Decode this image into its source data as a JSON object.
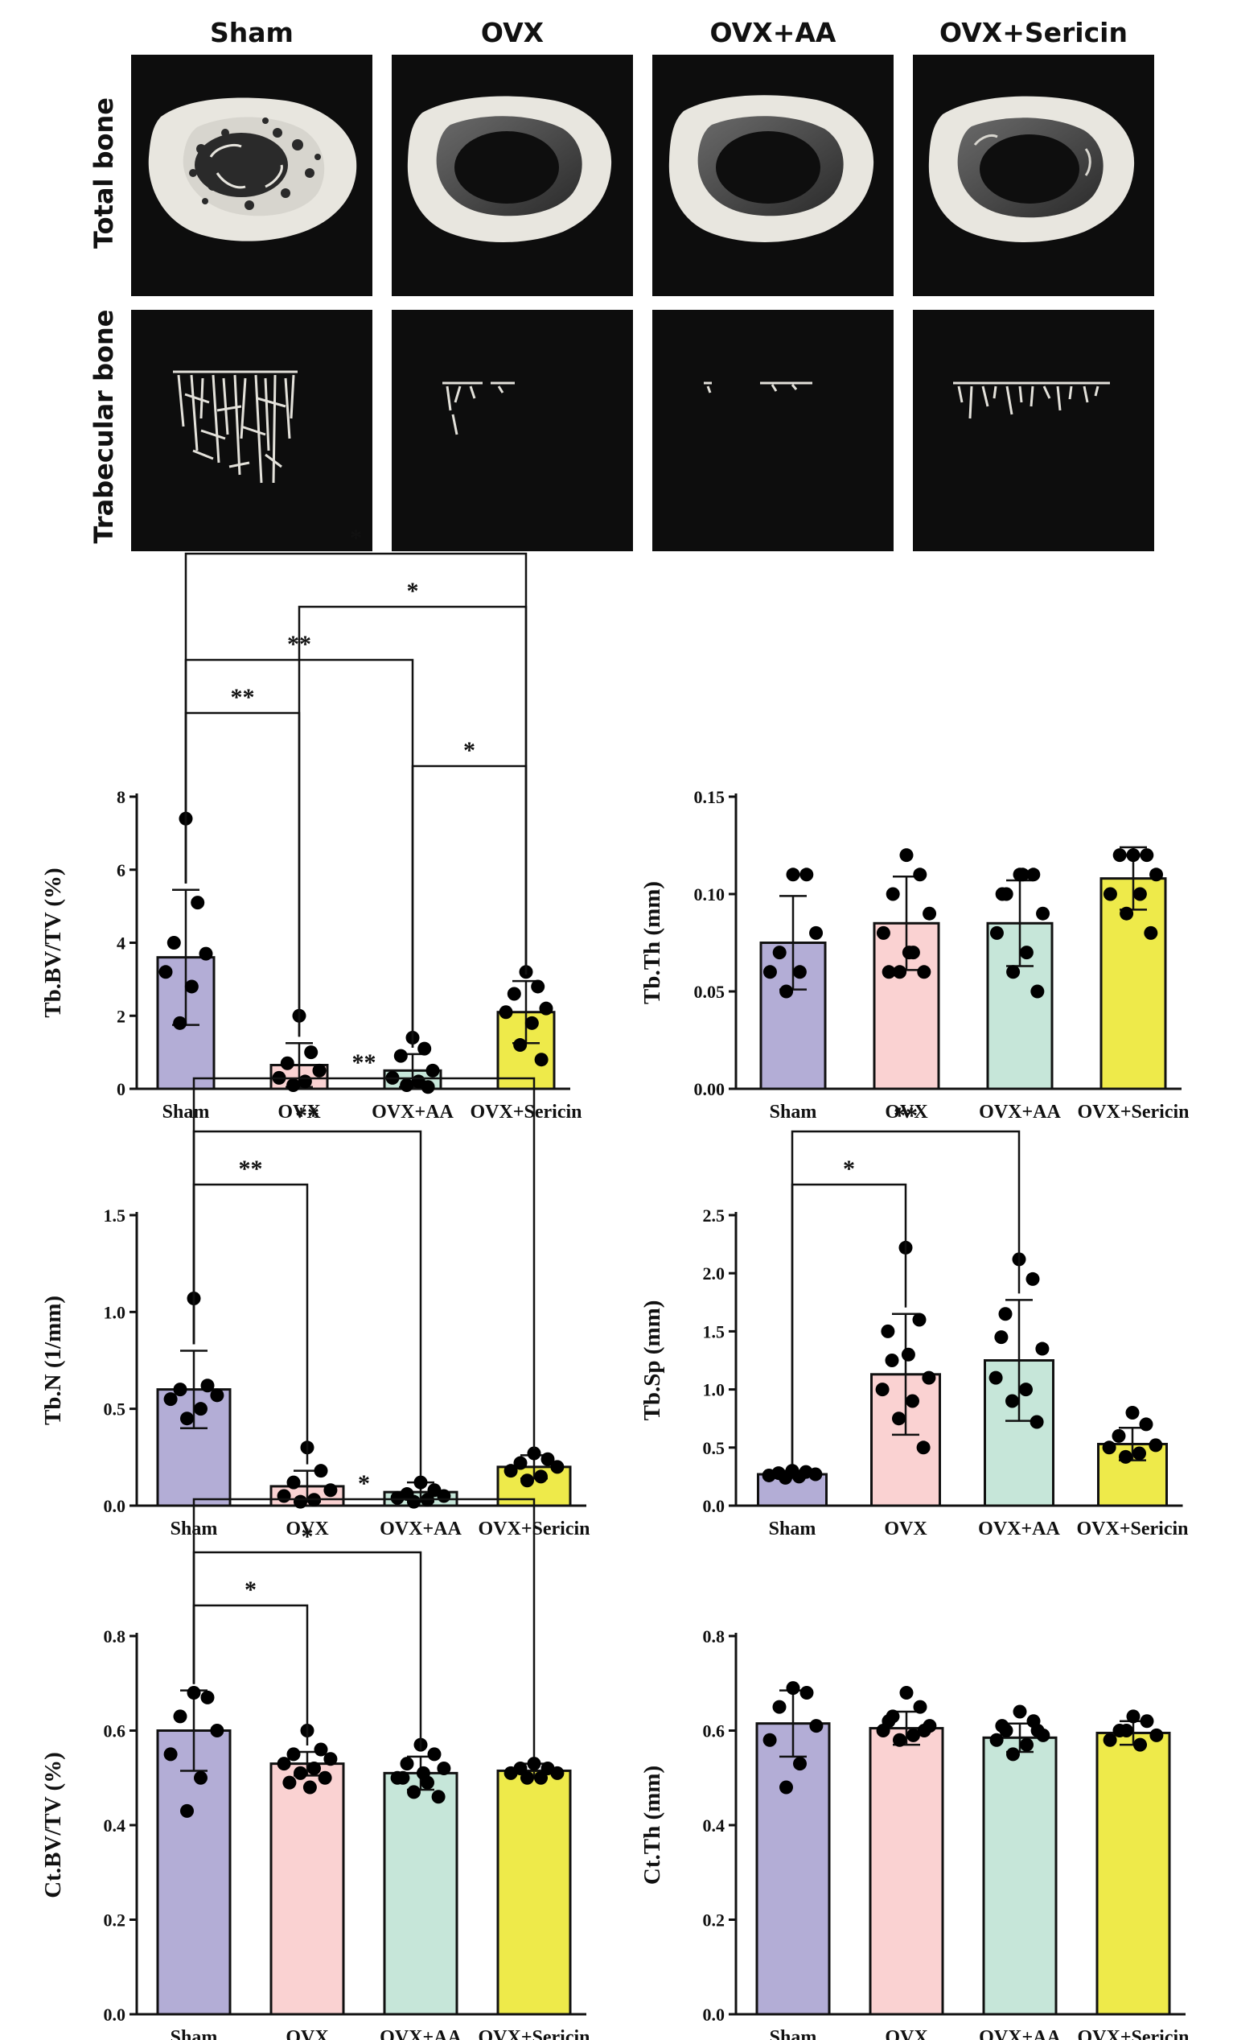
{
  "figure": {
    "groups": [
      "Sham",
      "OVX",
      "OVX+AA",
      "OVX+Sericin"
    ],
    "row_labels": [
      "Total bone",
      "Trabecular bone"
    ],
    "panel_image_labels": {
      "total": [
        "Sham total bone micro-CT",
        "OVX total bone micro-CT",
        "OVX+AA total bone micro-CT",
        "OVX+Sericin total bone micro-CT"
      ],
      "trabecular": [
        "Sham trabecular bone micro-CT",
        "OVX trabecular bone micro-CT",
        "OVX+AA trabecular bone micro-CT",
        "OVX+Sericin trabecular bone micro-CT"
      ]
    },
    "colors": {
      "Sham": "#b3add6",
      "OVX": "#fad2d2",
      "OVX+AA": "#c6e6d9",
      "OVX+Sericin": "#eeea4a"
    }
  },
  "chart_data": [
    {
      "type": "bar",
      "id": "tbbvtv",
      "ylabel": "Tb.BV/TV (%)",
      "categories": [
        "Sham",
        "OVX",
        "OVX+AA",
        "OVX+Sericin"
      ],
      "values": [
        3.6,
        0.65,
        0.5,
        2.1
      ],
      "sd": [
        1.85,
        0.6,
        0.45,
        0.85
      ],
      "ylim": [
        0,
        8
      ],
      "yticks": [
        0,
        2,
        4,
        6,
        8
      ],
      "tick_labels": [
        "0",
        "2",
        "4",
        "6",
        "8"
      ],
      "points": [
        [
          7.4,
          5.1,
          4.0,
          3.7,
          3.2,
          2.8,
          1.8
        ],
        [
          2.0,
          1.0,
          0.7,
          0.5,
          0.3,
          0.2,
          0.1
        ],
        [
          1.4,
          1.1,
          0.9,
          0.5,
          0.3,
          0.2,
          0.1,
          0.05
        ],
        [
          3.2,
          2.8,
          2.6,
          2.2,
          2.1,
          1.8,
          1.2,
          0.8
        ]
      ],
      "significance": [
        {
          "from": 0,
          "to": 3,
          "label": "*"
        },
        {
          "from": 1,
          "to": 3,
          "label": "*"
        },
        {
          "from": 0,
          "to": 2,
          "label": "**"
        },
        {
          "from": 0,
          "to": 1,
          "label": "**"
        },
        {
          "from": 2,
          "to": 3,
          "label": "*"
        }
      ]
    },
    {
      "type": "bar",
      "id": "tbth",
      "ylabel": "Tb.Th (mm)",
      "categories": [
        "Sham",
        "OVX",
        "OVX+AA",
        "OVX+Sericin"
      ],
      "values": [
        0.075,
        0.085,
        0.085,
        0.108
      ],
      "sd": [
        0.024,
        0.024,
        0.022,
        0.016
      ],
      "ylim": [
        0,
        0.15
      ],
      "yticks": [
        0,
        0.05,
        0.1,
        0.15
      ],
      "tick_labels": [
        "0.00",
        "0.05",
        "0.10",
        "0.15"
      ],
      "points": [
        [
          0.11,
          0.11,
          0.07,
          0.08,
          0.06,
          0.06,
          0.05
        ],
        [
          0.12,
          0.11,
          0.1,
          0.09,
          0.08,
          0.07,
          0.06,
          0.06,
          0.06,
          0.07
        ],
        [
          0.11,
          0.11,
          0.1,
          0.09,
          0.08,
          0.07,
          0.06,
          0.05,
          0.1,
          0.11
        ],
        [
          0.12,
          0.12,
          0.12,
          0.11,
          0.1,
          0.1,
          0.09,
          0.08
        ]
      ],
      "significance": []
    },
    {
      "type": "bar",
      "id": "tbn",
      "ylabel": "Tb.N (1/mm)",
      "categories": [
        "Sham",
        "OVX",
        "OVX+AA",
        "OVX+Sericin"
      ],
      "values": [
        0.6,
        0.1,
        0.07,
        0.2
      ],
      "sd": [
        0.2,
        0.08,
        0.05,
        0.06
      ],
      "ylim": [
        0,
        1.5
      ],
      "yticks": [
        0,
        0.5,
        1.0,
        1.5
      ],
      "tick_labels": [
        "0.0",
        "0.5",
        "1.0",
        "1.5"
      ],
      "points": [
        [
          1.07,
          0.62,
          0.6,
          0.57,
          0.55,
          0.5,
          0.45
        ],
        [
          0.3,
          0.18,
          0.12,
          0.08,
          0.05,
          0.03,
          0.02
        ],
        [
          0.12,
          0.08,
          0.06,
          0.05,
          0.04,
          0.03,
          0.02
        ],
        [
          0.27,
          0.24,
          0.22,
          0.2,
          0.18,
          0.15,
          0.13
        ]
      ],
      "significance": [
        {
          "from": 0,
          "to": 3,
          "label": "**"
        },
        {
          "from": 0,
          "to": 2,
          "label": "**"
        },
        {
          "from": 0,
          "to": 1,
          "label": "**"
        }
      ]
    },
    {
      "type": "bar",
      "id": "tbsp",
      "ylabel": "Tb.Sp (mm)",
      "categories": [
        "Sham",
        "OVX",
        "OVX+AA",
        "OVX+Sericin"
      ],
      "values": [
        0.27,
        1.13,
        1.25,
        0.53
      ],
      "sd": [
        0.03,
        0.52,
        0.52,
        0.14
      ],
      "ylim": [
        0,
        2.5
      ],
      "yticks": [
        0,
        0.5,
        1.0,
        1.5,
        2.0,
        2.5
      ],
      "tick_labels": [
        "0.0",
        "0.5",
        "1.0",
        "1.5",
        "2.0",
        "2.5"
      ],
      "points": [
        [
          0.3,
          0.29,
          0.28,
          0.27,
          0.26,
          0.25,
          0.24
        ],
        [
          2.22,
          1.6,
          1.25,
          1.1,
          1.0,
          0.9,
          0.75,
          0.5,
          1.5,
          1.3
        ],
        [
          2.12,
          1.95,
          1.65,
          1.35,
          1.1,
          1.0,
          0.9,
          0.72,
          1.45
        ],
        [
          0.8,
          0.7,
          0.6,
          0.52,
          0.5,
          0.45,
          0.42
        ]
      ],
      "significance": [
        {
          "from": 0,
          "to": 2,
          "label": "**"
        },
        {
          "from": 0,
          "to": 1,
          "label": "*"
        }
      ]
    },
    {
      "type": "bar",
      "id": "ctbvtv",
      "ylabel": "Ct.BV/TV (%)",
      "categories": [
        "Sham",
        "OVX",
        "OVX+AA",
        "OVX+Sericin"
      ],
      "values": [
        0.6,
        0.53,
        0.51,
        0.515
      ],
      "sd": [
        0.085,
        0.025,
        0.035,
        0.015
      ],
      "ylim": [
        0,
        0.8
      ],
      "yticks": [
        0,
        0.2,
        0.4,
        0.6,
        0.8
      ],
      "tick_labels": [
        "0.0",
        "0.2",
        "0.4",
        "0.6",
        "0.8"
      ],
      "points": [
        [
          0.68,
          0.67,
          0.63,
          0.6,
          0.55,
          0.5,
          0.43
        ],
        [
          0.6,
          0.56,
          0.55,
          0.54,
          0.53,
          0.52,
          0.51,
          0.5,
          0.49,
          0.48
        ],
        [
          0.57,
          0.55,
          0.53,
          0.52,
          0.5,
          0.49,
          0.47,
          0.46,
          0.5,
          0.51
        ],
        [
          0.53,
          0.52,
          0.52,
          0.51,
          0.51,
          0.5,
          0.5
        ]
      ],
      "significance": [
        {
          "from": 0,
          "to": 3,
          "label": "*"
        },
        {
          "from": 0,
          "to": 2,
          "label": "*"
        },
        {
          "from": 0,
          "to": 1,
          "label": "*"
        }
      ]
    },
    {
      "type": "bar",
      "id": "ctth",
      "ylabel": "Ct.Th (mm)",
      "categories": [
        "Sham",
        "OVX",
        "OVX+AA",
        "OVX+Sericin"
      ],
      "values": [
        0.615,
        0.605,
        0.585,
        0.595
      ],
      "sd": [
        0.07,
        0.035,
        0.03,
        0.025
      ],
      "ylim": [
        0,
        0.8
      ],
      "yticks": [
        0,
        0.2,
        0.4,
        0.6,
        0.8
      ],
      "tick_labels": [
        "0.0",
        "0.2",
        "0.4",
        "0.6",
        "0.8"
      ],
      "points": [
        [
          0.69,
          0.68,
          0.65,
          0.61,
          0.58,
          0.53,
          0.48
        ],
        [
          0.68,
          0.65,
          0.63,
          0.61,
          0.6,
          0.59,
          0.58,
          0.6,
          0.62
        ],
        [
          0.64,
          0.62,
          0.6,
          0.59,
          0.58,
          0.57,
          0.55,
          0.6,
          0.61
        ],
        [
          0.63,
          0.62,
          0.6,
          0.59,
          0.58,
          0.57,
          0.6
        ]
      ],
      "significance": []
    }
  ]
}
